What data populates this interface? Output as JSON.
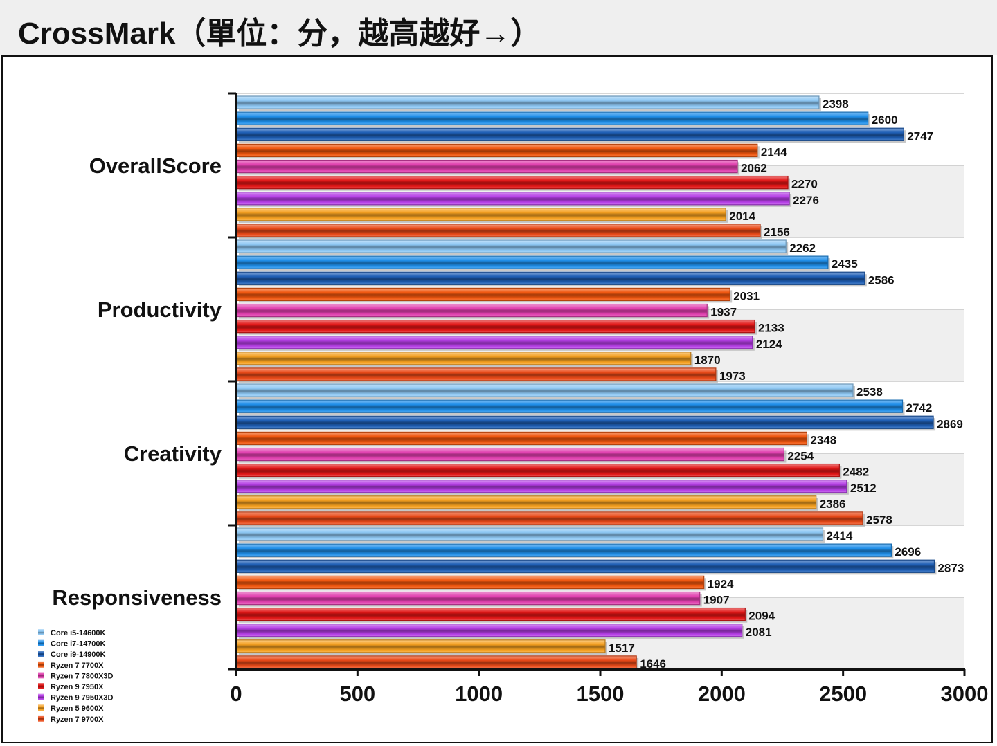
{
  "title": "CrossMark（單位：分，越高越好→）",
  "chart_data": {
    "type": "bar",
    "orientation": "horizontal",
    "categories": [
      "OverallScore",
      "Productivity",
      "Creativity",
      "Responsiveness"
    ],
    "series": [
      {
        "name": "Core i5-14600K",
        "color": "#8ec8f4",
        "values": [
          2398,
          2262,
          2538,
          2414
        ]
      },
      {
        "name": "Core i7-14700K",
        "color": "#1f8fea",
        "values": [
          2600,
          2435,
          2742,
          2696
        ]
      },
      {
        "name": "Core i9-14900K",
        "color": "#1f5fb6",
        "values": [
          2747,
          2586,
          2869,
          2873
        ]
      },
      {
        "name": "Ryzen 7 7700X",
        "color": "#f0560e",
        "values": [
          2144,
          2031,
          2348,
          1924
        ]
      },
      {
        "name": "Ryzen 7 7800X3D",
        "color": "#e03fae",
        "values": [
          2062,
          1937,
          2254,
          1907
        ]
      },
      {
        "name": "Ryzen 9 7950X",
        "color": "#e11616",
        "values": [
          2270,
          2133,
          2482,
          2094
        ]
      },
      {
        "name": "Ryzen 9 7950X3D",
        "color": "#b53ee6",
        "values": [
          2276,
          2124,
          2512,
          2081
        ]
      },
      {
        "name": "Ryzen 5 9600X",
        "color": "#f5a020",
        "values": [
          2014,
          1870,
          2386,
          1517
        ]
      },
      {
        "name": "Ryzen 7 9700X",
        "color": "#ea4a18",
        "values": [
          2156,
          1973,
          2578,
          1646
        ]
      }
    ],
    "xlim": [
      0,
      3000
    ],
    "xticks": [
      0,
      500,
      1000,
      1500,
      2000,
      2500,
      3000
    ],
    "grid": true,
    "legend_position": "bottom-left"
  }
}
